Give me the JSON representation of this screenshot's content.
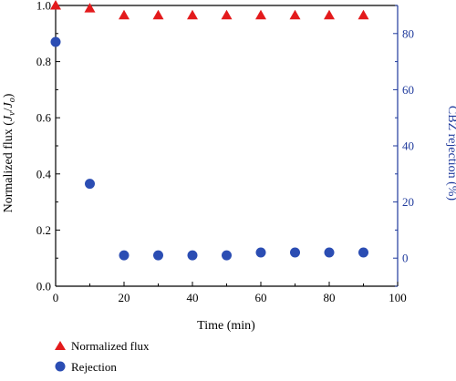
{
  "chart_data": {
    "type": "scatter",
    "xlabel": "Time (min)",
    "ylabel": {
      "prefix": "Normalized flux (",
      "j1": "J",
      "j1_sub": "v",
      "slash": "/",
      "j2": "J",
      "j2_sub": "o",
      "suffix": ")"
    },
    "y2label": "CBZ rejection (%)",
    "xlim": [
      0,
      100
    ],
    "ylim": [
      0,
      1.0
    ],
    "y2lim": [
      -10,
      90
    ],
    "x_ticks": [
      "0",
      "20",
      "40",
      "60",
      "80",
      "100"
    ],
    "y_ticks": [
      "0.0",
      "0.2",
      "0.4",
      "0.6",
      "0.8",
      "1.0"
    ],
    "y2_ticks": [
      "0",
      "20",
      "40",
      "60",
      "80"
    ],
    "grid": false,
    "legend_position": "bottom-left",
    "series": [
      {
        "name": "Normalized flux",
        "axis": "left",
        "marker": "triangle",
        "color": "#e31a1c",
        "x": [
          0,
          10,
          20,
          30,
          40,
          50,
          60,
          70,
          80,
          90
        ],
        "y": [
          1.0,
          0.99,
          0.965,
          0.965,
          0.965,
          0.965,
          0.965,
          0.965,
          0.965,
          0.965
        ]
      },
      {
        "name": "Rejection",
        "axis": "right",
        "marker": "circle",
        "color": "#2b4db3",
        "x": [
          0,
          10,
          20,
          30,
          40,
          50,
          60,
          70,
          80,
          90
        ],
        "y": [
          77,
          26.5,
          1,
          1,
          1,
          1,
          2,
          2,
          2,
          2
        ]
      }
    ]
  }
}
